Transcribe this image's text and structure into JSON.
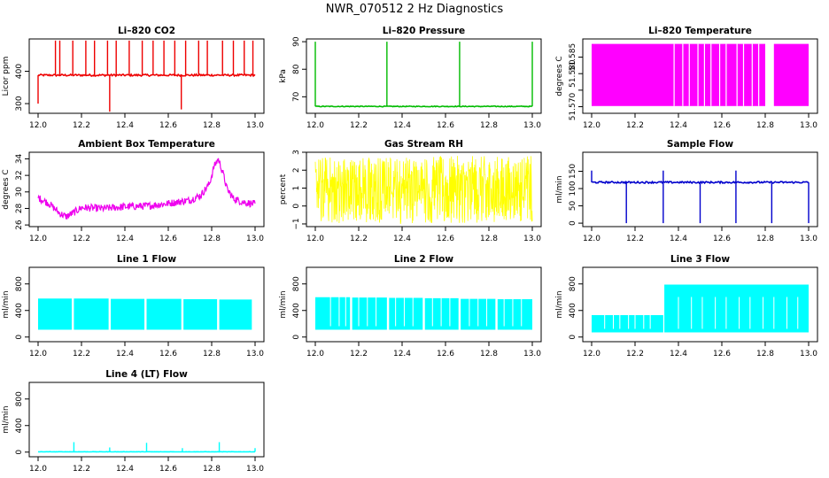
{
  "figure": {
    "title": "NWR_070512  2 Hz Diagnostics"
  },
  "chart_data": [
    {
      "type": "line",
      "title": "Li–820 CO2",
      "xlabel": "",
      "ylabel": "Licor ppm",
      "color": "#ee0000",
      "xlim": [
        12.0,
        13.0
      ],
      "ylim": [
        270,
        500
      ],
      "x_ticks": [
        12.0,
        12.2,
        12.4,
        12.6,
        12.8,
        13.0
      ],
      "x_tick_labels": [
        "12.0",
        "12.2",
        "12.4",
        "12.6",
        "12.8",
        "13.0"
      ],
      "y_ticks": [
        300,
        400
      ],
      "y_tick_labels": [
        "300",
        "400"
      ],
      "pattern": {
        "kind": "baseline_spikes",
        "base": 388,
        "noise": 3,
        "spike_value": 495,
        "spikes": [
          12.08,
          12.1,
          12.16,
          12.22,
          12.26,
          12.32,
          12.36,
          12.42,
          12.48,
          12.53,
          12.58,
          12.63,
          12.68,
          12.74,
          12.78,
          12.85,
          12.9,
          12.95,
          12.99
        ],
        "dips": [
          [
            12.0,
            300
          ],
          [
            12.33,
            275
          ],
          [
            12.66,
            282
          ]
        ]
      }
    },
    {
      "type": "line",
      "title": "Li–820 Pressure",
      "xlabel": "",
      "ylabel": "kPa",
      "color": "#00bb00",
      "xlim": [
        12.0,
        13.0
      ],
      "ylim": [
        64,
        91
      ],
      "x_ticks": [
        12.0,
        12.2,
        12.4,
        12.6,
        12.8,
        13.0
      ],
      "x_tick_labels": [
        "12.0",
        "12.2",
        "12.4",
        "12.6",
        "12.8",
        "13.0"
      ],
      "y_ticks": [
        70,
        80,
        90
      ],
      "y_tick_labels": [
        "70",
        "80",
        "90"
      ],
      "pattern": {
        "kind": "baseline_spikes",
        "base": 66.5,
        "noise": 0.15,
        "spike_value": 90,
        "spikes": [
          12.0,
          12.33,
          12.665,
          13.0
        ],
        "dips": []
      }
    },
    {
      "type": "area",
      "title": "Li–820 Temperature",
      "xlabel": "",
      "ylabel": "degrees C",
      "color": "#ff00ff",
      "xlim": [
        12.0,
        13.0
      ],
      "ylim": [
        51.568,
        51.5905
      ],
      "x_ticks": [
        12.0,
        12.2,
        12.4,
        12.6,
        12.8,
        13.0
      ],
      "x_tick_labels": [
        "12.0",
        "12.2",
        "12.4",
        "12.6",
        "12.8",
        "13.0"
      ],
      "y_ticks": [
        51.57,
        51.575,
        51.58,
        51.585
      ],
      "y_tick_labels": [
        "51.570",
        "",
        "51.580",
        "51.585"
      ],
      "pattern": {
        "kind": "band",
        "low": 51.5702,
        "high": 51.589,
        "gaps": [
          [
            12.8,
            12.84
          ]
        ],
        "stripes": [
          12.38,
          12.42,
          12.45,
          12.49,
          12.52,
          12.55,
          12.59,
          12.62,
          12.67,
          12.7,
          12.74,
          12.77
        ]
      }
    },
    {
      "type": "line",
      "title": "Ambient Box Temperature",
      "xlabel": "",
      "ylabel": "degrees C",
      "color": "#ee00ee",
      "xlim": [
        12.0,
        13.0
      ],
      "ylim": [
        25.8,
        34.8
      ],
      "x_ticks": [
        12.0,
        12.2,
        12.4,
        12.6,
        12.8,
        13.0
      ],
      "x_tick_labels": [
        "12.0",
        "12.2",
        "12.4",
        "12.6",
        "12.8",
        "13.0"
      ],
      "y_ticks": [
        26,
        28,
        30,
        32,
        34
      ],
      "y_tick_labels": [
        "26",
        "28",
        "30",
        "32",
        "34"
      ],
      "pattern": {
        "kind": "profile",
        "noise": 0.45,
        "points": [
          [
            12.0,
            29.3
          ],
          [
            12.05,
            28.6
          ],
          [
            12.1,
            27.4
          ],
          [
            12.13,
            27.0
          ],
          [
            12.17,
            27.6
          ],
          [
            12.2,
            28.1
          ],
          [
            12.3,
            28.0
          ],
          [
            12.4,
            28.2
          ],
          [
            12.5,
            28.3
          ],
          [
            12.6,
            28.6
          ],
          [
            12.7,
            29.0
          ],
          [
            12.75,
            29.6
          ],
          [
            12.79,
            31.0
          ],
          [
            12.81,
            33.0
          ],
          [
            12.83,
            34.0
          ],
          [
            12.85,
            32.5
          ],
          [
            12.87,
            30.4
          ],
          [
            12.9,
            29.2
          ],
          [
            12.94,
            28.8
          ],
          [
            13.0,
            28.5
          ]
        ]
      }
    },
    {
      "type": "line",
      "title": "Gas Stream RH",
      "xlabel": "",
      "ylabel": "percent",
      "color": "#ffff00",
      "xlim": [
        12.0,
        13.0
      ],
      "ylim": [
        -1.15,
        3.0
      ],
      "x_ticks": [
        12.0,
        12.2,
        12.4,
        12.6,
        12.8,
        13.0
      ],
      "x_tick_labels": [
        "12.0",
        "12.2",
        "12.4",
        "12.6",
        "12.8",
        "13.0"
      ],
      "y_ticks": [
        -1,
        0,
        1,
        2,
        3
      ],
      "y_tick_labels": [
        "−1",
        "0",
        "1",
        "2",
        "3"
      ],
      "pattern": {
        "kind": "noise",
        "center": 1.0,
        "low": -1.0,
        "high": 2.8
      }
    },
    {
      "type": "line",
      "title": "Sample Flow",
      "xlabel": "",
      "ylabel": "ml/min",
      "color": "#0000cc",
      "xlim": [
        12.0,
        13.0
      ],
      "ylim": [
        -10,
        205
      ],
      "x_ticks": [
        12.0,
        12.2,
        12.4,
        12.6,
        12.8,
        13.0
      ],
      "x_tick_labels": [
        "12.0",
        "12.2",
        "12.4",
        "12.6",
        "12.8",
        "13.0"
      ],
      "y_ticks": [
        0,
        50,
        100,
        150
      ],
      "y_tick_labels": [
        "0",
        "50",
        "100",
        "150"
      ],
      "pattern": {
        "kind": "baseline_spikes",
        "base": 118,
        "noise": 2.5,
        "spike_value": 152,
        "spikes": [
          12.0,
          12.33,
          12.665
        ],
        "dips": [
          [
            12.16,
            0
          ],
          [
            12.33,
            0
          ],
          [
            12.5,
            0
          ],
          [
            12.665,
            0
          ],
          [
            12.83,
            0
          ],
          [
            13.0,
            0
          ]
        ]
      }
    },
    {
      "type": "area",
      "title": "Line 1 Flow",
      "xlabel": "",
      "ylabel": "ml/min",
      "color": "#00ffff",
      "xlim": [
        12.0,
        13.0
      ],
      "ylim": [
        -70,
        1050
      ],
      "x_ticks": [
        12.0,
        12.2,
        12.4,
        12.6,
        12.8,
        13.0
      ],
      "x_tick_labels": [
        "12.0",
        "12.2",
        "12.4",
        "12.6",
        "12.8",
        "13.0"
      ],
      "y_ticks": [
        0,
        400,
        800
      ],
      "y_tick_labels": [
        "0",
        "400",
        "800"
      ],
      "pattern": {
        "kind": "blocks",
        "low": 110,
        "segments": [
          [
            12.0,
            12.155,
            580
          ],
          [
            12.165,
            12.325,
            580
          ],
          [
            12.335,
            12.49,
            575
          ],
          [
            12.5,
            12.66,
            575
          ],
          [
            12.67,
            12.825,
            570
          ],
          [
            12.835,
            12.985,
            565
          ]
        ]
      }
    },
    {
      "type": "area",
      "title": "Line 2 Flow",
      "xlabel": "",
      "ylabel": "ml/min",
      "color": "#00ffff",
      "xlim": [
        12.0,
        13.0
      ],
      "ylim": [
        -70,
        1050
      ],
      "x_ticks": [
        12.0,
        12.2,
        12.4,
        12.6,
        12.8,
        13.0
      ],
      "x_tick_labels": [
        "12.0",
        "12.2",
        "12.4",
        "12.6",
        "12.8",
        "13.0"
      ],
      "y_ticks": [
        0,
        400,
        800
      ],
      "y_tick_labels": [
        "0",
        "400",
        "800"
      ],
      "pattern": {
        "kind": "blocks",
        "low": 110,
        "segments": [
          [
            12.0,
            12.16,
            600
          ],
          [
            12.17,
            12.33,
            595
          ],
          [
            12.34,
            12.495,
            590
          ],
          [
            12.505,
            12.66,
            585
          ],
          [
            12.67,
            12.83,
            575
          ],
          [
            12.84,
            13.0,
            570
          ]
        ],
        "stripes": [
          12.07,
          12.11,
          12.14,
          12.2,
          12.24,
          12.28,
          12.37,
          12.41,
          12.45,
          12.54,
          12.58,
          12.62,
          12.71,
          12.75,
          12.79,
          12.87,
          12.91,
          12.95
        ]
      }
    },
    {
      "type": "area",
      "title": "Line 3 Flow",
      "xlabel": "",
      "ylabel": "ml/min",
      "color": "#00ffff",
      "xlim": [
        12.0,
        13.0
      ],
      "ylim": [
        -70,
        1050
      ],
      "x_ticks": [
        12.0,
        12.2,
        12.4,
        12.6,
        12.8,
        13.0
      ],
      "x_tick_labels": [
        "12.0",
        "12.2",
        "12.4",
        "12.6",
        "12.8",
        "13.0"
      ],
      "y_ticks": [
        0,
        400,
        800
      ],
      "y_tick_labels": [
        "0",
        "400",
        "800"
      ],
      "pattern": {
        "kind": "blocks",
        "low": 70,
        "segments": [
          [
            12.0,
            12.33,
            330
          ],
          [
            12.335,
            13.0,
            790
          ]
        ],
        "stripes": [
          12.06,
          12.1,
          12.13,
          12.17,
          12.2,
          12.24,
          12.27,
          12.4,
          12.46,
          12.51,
          12.57,
          12.62,
          12.68,
          12.73,
          12.79,
          12.84,
          12.9,
          12.95
        ]
      }
    },
    {
      "type": "line",
      "title": "Line 4 (LT) Flow",
      "xlabel": "",
      "ylabel": "ml/min",
      "color": "#00ffff",
      "xlim": [
        12.0,
        13.0
      ],
      "ylim": [
        -70,
        1050
      ],
      "x_ticks": [
        12.0,
        12.2,
        12.4,
        12.6,
        12.8,
        13.0
      ],
      "x_tick_labels": [
        "12.0",
        "12.2",
        "12.4",
        "12.6",
        "12.8",
        "13.0"
      ],
      "y_ticks": [
        0,
        400,
        800
      ],
      "y_tick_labels": [
        "0",
        "400",
        "800"
      ],
      "pattern": {
        "kind": "baseline_spikes",
        "base": 5,
        "noise": 2,
        "spike_value": 150,
        "spikes": [
          12.165,
          12.33,
          12.5,
          12.665,
          12.835,
          13.0
        ],
        "spike_heights": [
          150,
          70,
          140,
          60,
          150,
          60
        ],
        "dips": []
      }
    }
  ]
}
